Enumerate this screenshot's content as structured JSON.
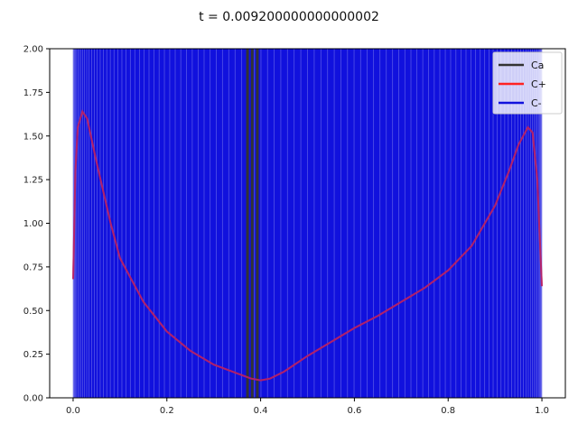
{
  "chart_data": {
    "type": "line",
    "title": "t = 0.009200000000000002",
    "xlabel": "",
    "ylabel": "",
    "xlim": [
      -0.05,
      1.05
    ],
    "ylim": [
      0,
      2.0
    ],
    "x_ticks": [
      "0.0",
      "0.2",
      "0.4",
      "0.6",
      "0.8",
      "1.0"
    ],
    "y_ticks": [
      "0.00",
      "0.25",
      "0.50",
      "0.75",
      "1.00",
      "1.25",
      "1.50",
      "1.75",
      "2.00"
    ],
    "grid": false,
    "legend_position": "top-right",
    "series": [
      {
        "name": "Ca",
        "color": "#333333",
        "description_visible": "vertical lines",
        "x_vertical": [
          0.372,
          0.382,
          0.393
        ]
      },
      {
        "name": "C+",
        "color": "#ff2222",
        "x": [
          0.0,
          0.005,
          0.01,
          0.02,
          0.03,
          0.05,
          0.08,
          0.1,
          0.15,
          0.2,
          0.25,
          0.3,
          0.35,
          0.38,
          0.4,
          0.42,
          0.45,
          0.5,
          0.55,
          0.6,
          0.65,
          0.7,
          0.75,
          0.8,
          0.85,
          0.9,
          0.93,
          0.95,
          0.97,
          0.98,
          0.99,
          1.0
        ],
        "values": [
          0.68,
          1.3,
          1.55,
          1.64,
          1.6,
          1.35,
          1.0,
          0.8,
          0.55,
          0.38,
          0.27,
          0.19,
          0.14,
          0.11,
          0.1,
          0.11,
          0.15,
          0.24,
          0.32,
          0.4,
          0.47,
          0.55,
          0.63,
          0.73,
          0.87,
          1.1,
          1.3,
          1.45,
          1.55,
          1.52,
          1.25,
          0.64
        ]
      },
      {
        "name": "C-",
        "color": "#1111dd",
        "description_visible": "dense vertical oscillation between 0 and 2 across the full domain",
        "x_range": [
          0.0,
          1.0
        ],
        "y_range": [
          0,
          2.0
        ]
      }
    ]
  }
}
